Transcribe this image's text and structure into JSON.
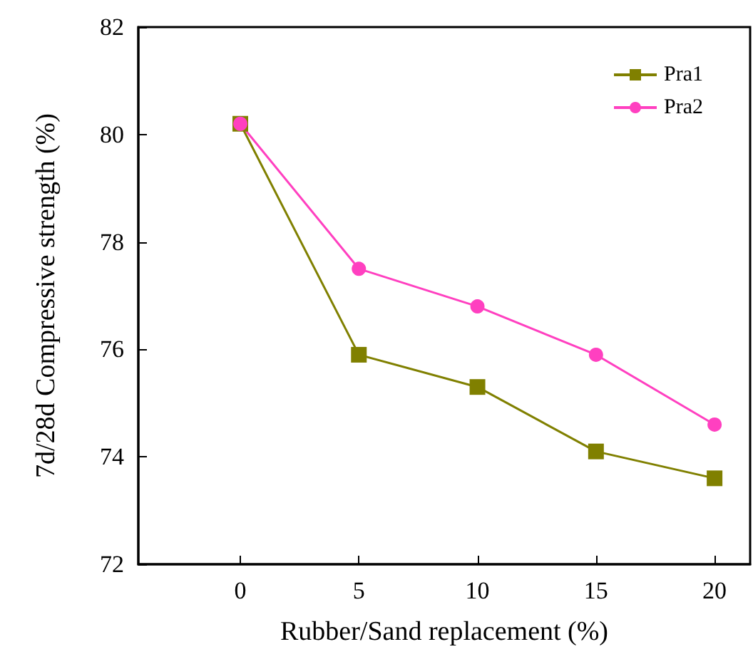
{
  "chart_data": {
    "type": "line",
    "xlabel": "Rubber/Sand replacement (%)",
    "ylabel": "7d/28d Compressive strength (%)",
    "x": [
      0,
      5,
      10,
      15,
      20
    ],
    "series": [
      {
        "name": "Pra1",
        "color": "#808000",
        "marker": "square",
        "values": [
          80.2,
          75.9,
          75.3,
          74.1,
          73.6
        ]
      },
      {
        "name": "Pra2",
        "color": "#ff40c0",
        "marker": "circle",
        "values": [
          80.2,
          77.5,
          76.8,
          75.9,
          74.6
        ]
      }
    ],
    "xlim": [
      -4.3,
      21.5
    ],
    "xticks": [
      0,
      5,
      10,
      15,
      20
    ],
    "ylim": [
      72,
      82
    ],
    "yticks": [
      72,
      74,
      76,
      78,
      80,
      82
    ],
    "grid": false,
    "legend": "top right",
    "line_style": "solid"
  }
}
